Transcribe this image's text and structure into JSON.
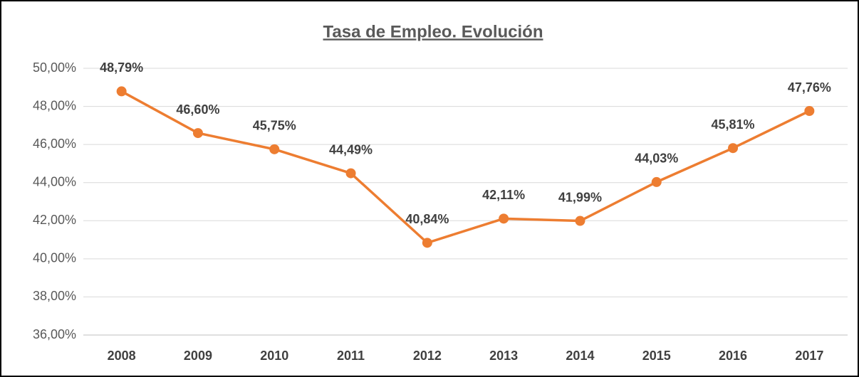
{
  "chart_data": {
    "type": "line",
    "title": "Tasa de Empleo. Evolución",
    "categories": [
      "2008",
      "2009",
      "2010",
      "2011",
      "2012",
      "2013",
      "2014",
      "2015",
      "2016",
      "2017"
    ],
    "series": [
      {
        "name": "Tasa de Empleo",
        "color": "#ed7d31",
        "values": [
          48.79,
          46.6,
          45.75,
          44.49,
          40.84,
          42.11,
          41.99,
          44.03,
          45.81,
          47.76
        ],
        "value_labels": [
          "48,79%",
          "46,60%",
          "45,75%",
          "44,49%",
          "40,84%",
          "42,11%",
          "41,99%",
          "44,03%",
          "45,81%",
          "47,76%"
        ]
      }
    ],
    "ylim": [
      36,
      50
    ],
    "yticks": [
      {
        "value": 36,
        "label": "36,00%"
      },
      {
        "value": 38,
        "label": "38,00%"
      },
      {
        "value": 40,
        "label": "40,00%"
      },
      {
        "value": 42,
        "label": "42,00%"
      },
      {
        "value": 44,
        "label": "44,00%"
      },
      {
        "value": 46,
        "label": "46,00%"
      },
      {
        "value": 48,
        "label": "48,00%"
      },
      {
        "value": 50,
        "label": "50,00%"
      }
    ],
    "grid": true
  }
}
